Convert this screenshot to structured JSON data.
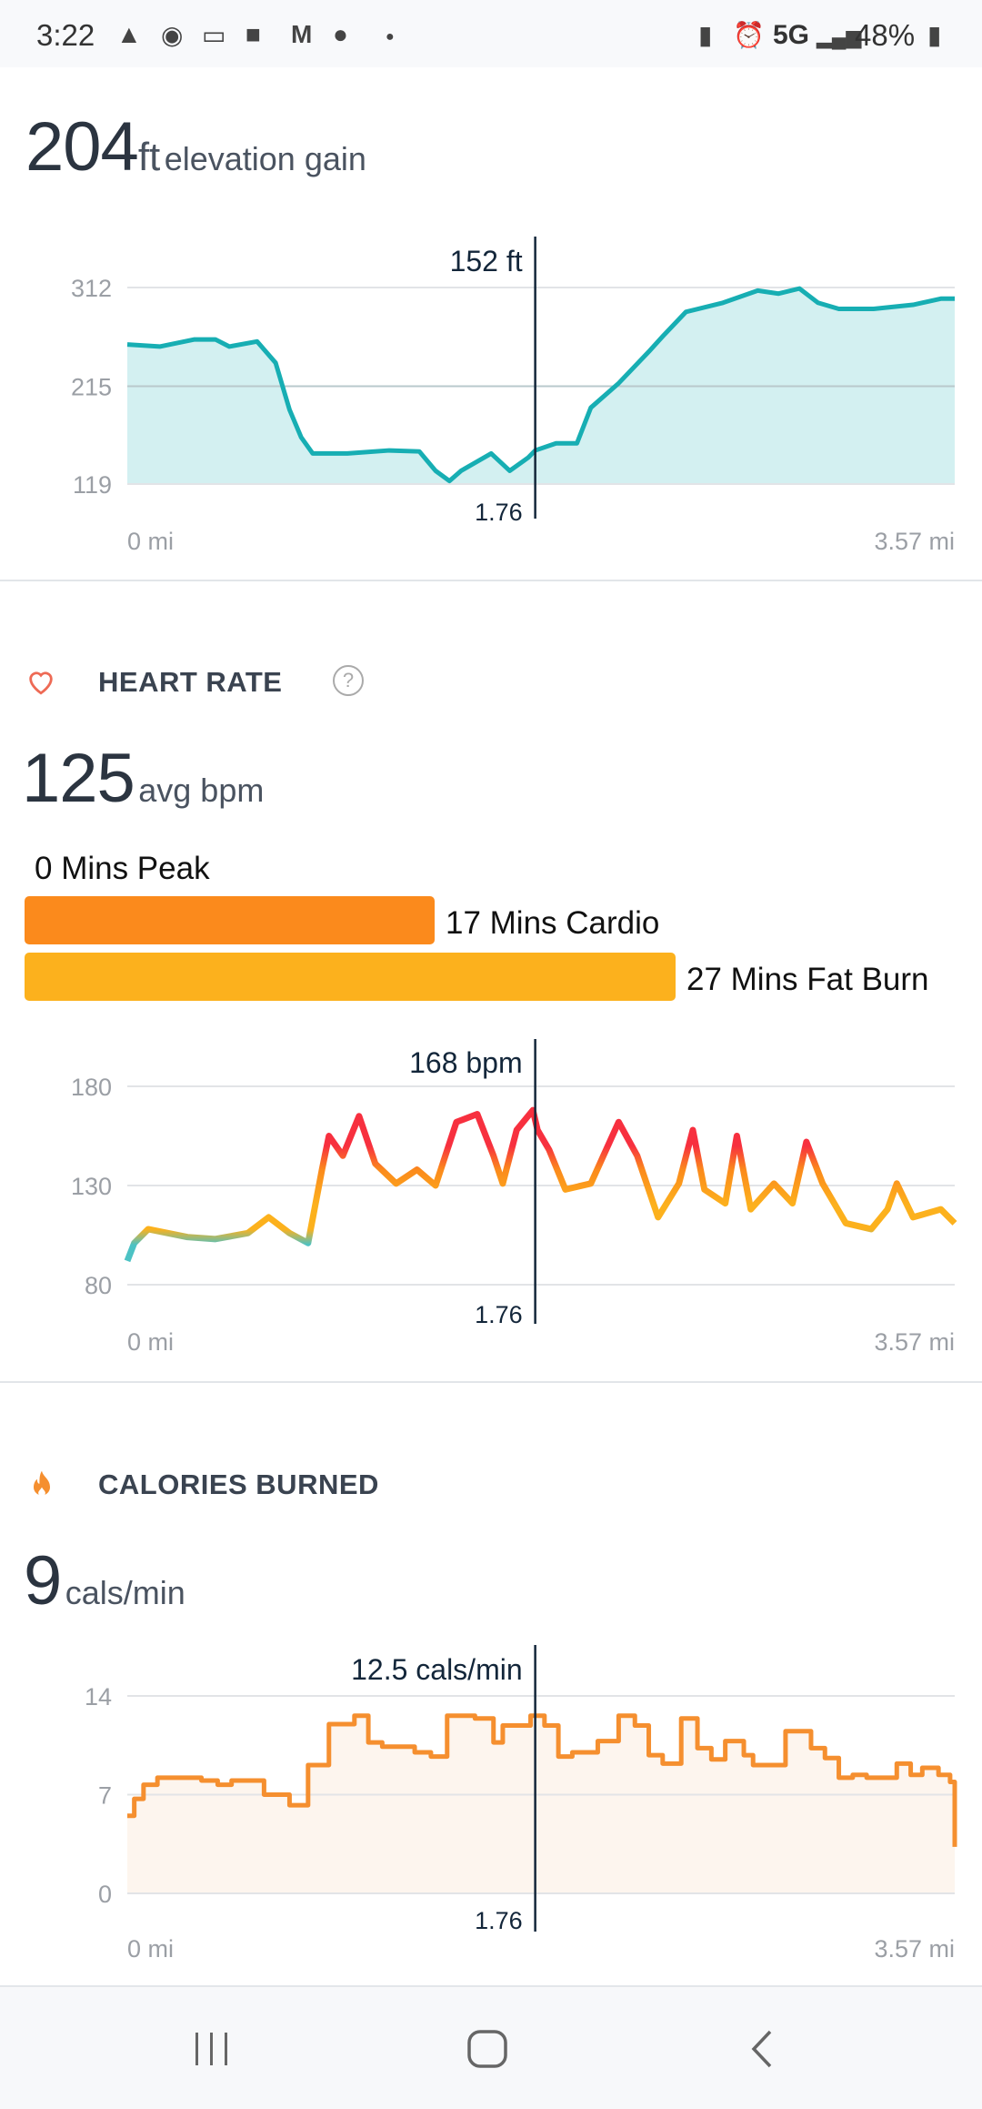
{
  "status_bar": {
    "time": "3:22",
    "left_icons": [
      "warning-icon",
      "paw-location-icon",
      "voicemail-message-icon",
      "voicemail-icon",
      "gmail-icon",
      "chrome-icon",
      "dot-icon"
    ],
    "right_icons": [
      "battery-saver-icon",
      "alarm-icon",
      "signal-icon",
      "battery-charging-icon"
    ],
    "network": "5G",
    "battery": "48%"
  },
  "elevation": {
    "value": "204",
    "unit": "ft",
    "label": "elevation gain"
  },
  "heart_rate": {
    "title": "HEART RATE",
    "help_icon": "question-circle-icon",
    "value": "125",
    "unit": "avg bpm",
    "zones": [
      {
        "label": "0 Mins Peak",
        "minutes": 0,
        "color": "#f0343f"
      },
      {
        "label": "17 Mins Cardio",
        "minutes": 17,
        "color": "#fb8a1c"
      },
      {
        "label": "27 Mins Fat Burn",
        "minutes": 27,
        "color": "#fcb11d"
      }
    ]
  },
  "calories": {
    "title": "CALORIES BURNED",
    "value": "9",
    "unit": "cals/min"
  },
  "chart_data": [
    {
      "type": "area",
      "title": "Elevation",
      "xlabel": "",
      "ylabel": "ft",
      "x_tick_labels": [
        "0 mi",
        "3.57 mi"
      ],
      "y_ticks": [
        119,
        215,
        312
      ],
      "xlim": [
        0,
        3.57
      ],
      "ylim": [
        119,
        312
      ],
      "cursor": {
        "x": 1.76,
        "x_label": "1.76",
        "value_label": "152 ft"
      },
      "color": "#17aeb3",
      "fill": "#d3f0f1",
      "x": [
        0,
        0.14,
        0.29,
        0.38,
        0.44,
        0.56,
        0.64,
        0.7,
        0.75,
        0.8,
        0.95,
        1.13,
        1.26,
        1.33,
        1.39,
        1.44,
        1.57,
        1.65,
        1.73,
        1.76,
        1.85,
        1.94,
        2.0,
        2.12,
        2.25,
        2.31,
        2.41,
        2.57,
        2.72,
        2.81,
        2.9,
        2.98,
        3.07,
        3.22,
        3.39,
        3.51,
        3.57
      ],
      "y": [
        256,
        254,
        261,
        261,
        254,
        259,
        238,
        192,
        165,
        149,
        149,
        152,
        151,
        132,
        122,
        132,
        149,
        132,
        145,
        152,
        159,
        159,
        194,
        218,
        249,
        264,
        288,
        297,
        309,
        306,
        311,
        297,
        291,
        291,
        295,
        301,
        301
      ]
    },
    {
      "type": "line",
      "title": "Heart Rate",
      "xlabel": "",
      "ylabel": "bpm",
      "x_tick_labels": [
        "0 mi",
        "3.57 mi"
      ],
      "y_ticks": [
        80,
        130,
        180
      ],
      "xlim": [
        0,
        3.57
      ],
      "ylim": [
        80,
        180
      ],
      "cursor": {
        "x": 1.76,
        "x_label": "1.76",
        "value_label": "168 bpm"
      },
      "x": [
        0,
        0.03,
        0.09,
        0.26,
        0.38,
        0.52,
        0.61,
        0.7,
        0.78,
        0.84,
        0.87,
        0.93,
        1.0,
        1.07,
        1.16,
        1.25,
        1.33,
        1.42,
        1.51,
        1.58,
        1.62,
        1.68,
        1.75,
        1.77,
        1.82,
        1.89,
        2.0,
        2.12,
        2.2,
        2.29,
        2.38,
        2.44,
        2.49,
        2.58,
        2.63,
        2.69,
        2.79,
        2.87,
        2.93,
        3.0,
        3.1,
        3.21,
        3.28,
        3.32,
        3.39,
        3.51,
        3.57
      ],
      "y": [
        92,
        101,
        108,
        104,
        103,
        106,
        114,
        106,
        101,
        138,
        155,
        145,
        165,
        141,
        131,
        138,
        130,
        162,
        166,
        145,
        131,
        158,
        168,
        158,
        148,
        128,
        131,
        162,
        145,
        114,
        131,
        158,
        128,
        121,
        155,
        118,
        131,
        121,
        152,
        131,
        111,
        108,
        118,
        131,
        114,
        118,
        111
      ]
    },
    {
      "type": "area",
      "title": "Calories Burned",
      "xlabel": "",
      "ylabel": "cals/min",
      "x_tick_labels": [
        "0 mi",
        "3.57 mi"
      ],
      "y_ticks": [
        0,
        7,
        14
      ],
      "xlim": [
        0,
        3.57
      ],
      "ylim": [
        0,
        14
      ],
      "cursor": {
        "x": 1.76,
        "x_label": "1.76",
        "value_label": "12.5 cals/min"
      },
      "step": true,
      "color": "#f58f2f",
      "fill": "#fdf5ee",
      "x": [
        0,
        0.03,
        0.07,
        0.13,
        0.32,
        0.39,
        0.45,
        0.59,
        0.7,
        0.78,
        0.87,
        0.98,
        1.04,
        1.1,
        1.24,
        1.31,
        1.38,
        1.5,
        1.58,
        1.62,
        1.74,
        1.8,
        1.86,
        1.92,
        2.03,
        2.12,
        2.19,
        2.25,
        2.31,
        2.39,
        2.46,
        2.52,
        2.58,
        2.66,
        2.7,
        2.84,
        2.95,
        3.01,
        3.07,
        3.13,
        3.19,
        3.32,
        3.38,
        3.43,
        3.5,
        3.55,
        3.57
      ],
      "y": [
        5.5,
        6.7,
        7.7,
        8.2,
        8.0,
        7.7,
        8.0,
        7.0,
        6.25,
        9.1,
        12.0,
        12.6,
        10.7,
        10.4,
        10.0,
        9.7,
        12.6,
        12.4,
        10.7,
        11.9,
        12.6,
        11.9,
        9.7,
        10.0,
        10.8,
        12.6,
        11.9,
        9.8,
        9.2,
        12.4,
        10.3,
        9.5,
        10.8,
        9.8,
        9.1,
        11.5,
        10.3,
        9.6,
        8.2,
        8.4,
        8.2,
        9.2,
        8.4,
        8.9,
        8.4,
        7.9,
        3.3
      ]
    }
  ]
}
